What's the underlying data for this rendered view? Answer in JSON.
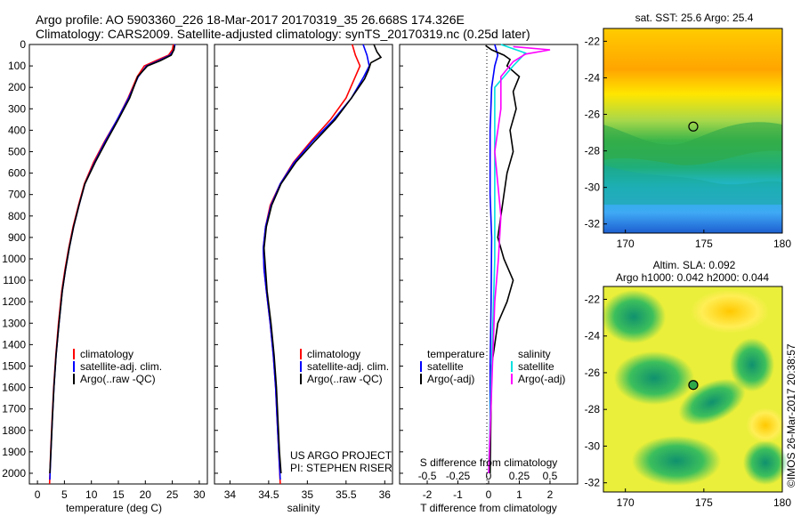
{
  "header": {
    "line1": "Argo profile: AO 5903360_226 18-Mar-2017 20170319_35 26.668S 174.326E",
    "line2": "Climatology: CARS2009. Satellite-adjusted climatology: synTS_20170319.nc (0.25d later)"
  },
  "colors": {
    "climatology": "#ff0000",
    "satellite": "#0000ff",
    "argo": "#000000",
    "sal_satellite": "#00e0e0",
    "sal_argo": "#ff00ff"
  },
  "depth_ticks": [
    "0",
    "100",
    "200",
    "300",
    "400",
    "500",
    "600",
    "700",
    "800",
    "900",
    "1000",
    "1100",
    "1200",
    "1300",
    "1400",
    "1500",
    "1600",
    "1700",
    "1800",
    "1900",
    "2000"
  ],
  "panels": {
    "temperature": {
      "xlabel": "temperature (deg C)",
      "xticks": [
        "0",
        "5",
        "10",
        "15",
        "20",
        "25",
        "30"
      ],
      "legend": [
        "climatology",
        "satellite-adj. clim.",
        "Argo(..raw -QC)"
      ]
    },
    "salinity": {
      "xlabel": "salinity",
      "xticks": [
        "34",
        "34.5",
        "35",
        "35.5",
        "36"
      ],
      "legend": [
        "climatology",
        "satellite-adj. clim.",
        "Argo(..raw -QC)"
      ],
      "credit1": "US ARGO PROJECT",
      "credit2": "PI: STEPHEN RISER"
    },
    "difference": {
      "xlabel": "T difference from climatology",
      "xticks": [
        "-2",
        "-1",
        "0",
        "1",
        "2"
      ],
      "top_label": "S difference from climatology",
      "top_ticks": [
        "-0.5",
        "-0.25",
        "0",
        "0.25",
        "0.5"
      ],
      "legend_t_title": "temperature",
      "legend_s_title": "salinity",
      "legend_t": [
        "satellite",
        "Argo(-adj)"
      ],
      "legend_s": [
        "satellite",
        "Argo(-adj)"
      ]
    }
  },
  "maps": {
    "sst": {
      "title": "sat. SST: 25.6  Argo: 25.4",
      "yticks": [
        "-22",
        "-24",
        "-26",
        "-28",
        "-30",
        "-32"
      ],
      "xticks": [
        "170",
        "175",
        "180"
      ]
    },
    "sla": {
      "title1": "Altim. SLA: 0.092",
      "title2": "Argo h1000: 0.042 h2000: 0.044",
      "yticks": [
        "-22",
        "-24",
        "-26",
        "-28",
        "-30",
        "-32"
      ],
      "xticks": [
        "170",
        "175",
        "180"
      ]
    },
    "profile_location": {
      "lon": 174.326,
      "lat": -26.668
    }
  },
  "footer_stamp": "©IMOS 26-Mar-2017 20:38:57",
  "chart_data": [
    {
      "type": "line",
      "name": "temperature",
      "xlabel": "temperature (deg C)",
      "ylabel": "",
      "xlim": [
        -1.5,
        31.5
      ],
      "ylim": [
        2050,
        0
      ],
      "series": [
        {
          "name": "climatology",
          "color": "#ff0000",
          "points": [
            [
              25.2,
              0
            ],
            [
              25.0,
              25
            ],
            [
              24.3,
              50
            ],
            [
              22.0,
              75
            ],
            [
              19.8,
              100
            ],
            [
              18.5,
              150
            ],
            [
              16.8,
              250
            ],
            [
              14.8,
              350
            ],
            [
              12.5,
              450
            ],
            [
              10.4,
              550
            ],
            [
              8.7,
              650
            ],
            [
              7.6,
              750
            ],
            [
              6.6,
              850
            ],
            [
              5.8,
              950
            ],
            [
              5.1,
              1050
            ],
            [
              4.5,
              1150
            ],
            [
              3.9,
              1300
            ],
            [
              3.4,
              1450
            ],
            [
              3.0,
              1600
            ],
            [
              2.7,
              1750
            ],
            [
              2.45,
              1900
            ],
            [
              2.25,
              2050
            ]
          ]
        },
        {
          "name": "satellite-adj. clim.",
          "color": "#0000ff",
          "points": [
            [
              25.5,
              0
            ],
            [
              25.3,
              25
            ],
            [
              24.6,
              50
            ],
            [
              22.5,
              75
            ],
            [
              20.2,
              100
            ],
            [
              18.7,
              150
            ],
            [
              16.9,
              250
            ],
            [
              14.8,
              350
            ],
            [
              12.6,
              450
            ],
            [
              10.6,
              550
            ],
            [
              8.8,
              650
            ],
            [
              7.7,
              750
            ],
            [
              6.7,
              850
            ],
            [
              5.9,
              950
            ],
            [
              5.2,
              1050
            ],
            [
              4.6,
              1150
            ],
            [
              4.0,
              1300
            ],
            [
              3.45,
              1450
            ],
            [
              3.05,
              1600
            ],
            [
              2.75,
              1750
            ],
            [
              2.5,
              1900
            ],
            [
              2.3,
              2030
            ]
          ]
        },
        {
          "name": "Argo(..raw -QC)",
          "color": "#000000",
          "points": [
            [
              25.4,
              5
            ],
            [
              25.3,
              25
            ],
            [
              24.8,
              50
            ],
            [
              22.8,
              75
            ],
            [
              20.4,
              100
            ],
            [
              18.6,
              150
            ],
            [
              17.1,
              250
            ],
            [
              15.0,
              350
            ],
            [
              12.8,
              450
            ],
            [
              10.7,
              550
            ],
            [
              8.8,
              650
            ],
            [
              7.7,
              750
            ],
            [
              6.7,
              850
            ],
            [
              5.9,
              950
            ],
            [
              5.2,
              1050
            ],
            [
              4.6,
              1150
            ],
            [
              4.0,
              1300
            ],
            [
              3.45,
              1450
            ],
            [
              3.05,
              1600
            ],
            [
              2.75,
              1750
            ],
            [
              2.5,
              1900
            ],
            [
              2.3,
              2000
            ]
          ]
        }
      ]
    },
    {
      "type": "line",
      "name": "salinity",
      "xlabel": "salinity",
      "ylabel": "",
      "xlim": [
        33.8,
        36.1
      ],
      "ylim": [
        2050,
        0
      ],
      "series": [
        {
          "name": "climatology",
          "color": "#ff0000",
          "points": [
            [
              35.58,
              0
            ],
            [
              35.62,
              50
            ],
            [
              35.68,
              100
            ],
            [
              35.62,
              150
            ],
            [
              35.5,
              250
            ],
            [
              35.3,
              350
            ],
            [
              35.05,
              450
            ],
            [
              34.82,
              550
            ],
            [
              34.65,
              650
            ],
            [
              34.52,
              750
            ],
            [
              34.46,
              850
            ],
            [
              34.43,
              950
            ],
            [
              34.44,
              1050
            ],
            [
              34.47,
              1150
            ],
            [
              34.52,
              1300
            ],
            [
              34.56,
              1450
            ],
            [
              34.59,
              1600
            ],
            [
              34.61,
              1750
            ],
            [
              34.63,
              1900
            ],
            [
              34.65,
              2050
            ]
          ]
        },
        {
          "name": "satellite-adj. clim.",
          "color": "#0000ff",
          "points": [
            [
              35.72,
              0
            ],
            [
              35.77,
              50
            ],
            [
              35.8,
              100
            ],
            [
              35.73,
              150
            ],
            [
              35.57,
              250
            ],
            [
              35.34,
              350
            ],
            [
              35.07,
              450
            ],
            [
              34.83,
              550
            ],
            [
              34.65,
              650
            ],
            [
              34.53,
              750
            ],
            [
              34.46,
              850
            ],
            [
              34.43,
              950
            ],
            [
              34.44,
              1050
            ],
            [
              34.47,
              1150
            ],
            [
              34.52,
              1300
            ],
            [
              34.56,
              1450
            ],
            [
              34.59,
              1600
            ],
            [
              34.61,
              1750
            ],
            [
              34.63,
              1900
            ],
            [
              34.65,
              2030
            ]
          ]
        },
        {
          "name": "Argo(..raw -QC)",
          "color": "#000000",
          "points": [
            [
              35.86,
              0
            ],
            [
              35.9,
              35
            ],
            [
              35.95,
              60
            ],
            [
              35.82,
              85
            ],
            [
              35.79,
              120
            ],
            [
              35.74,
              160
            ],
            [
              35.57,
              250
            ],
            [
              35.36,
              350
            ],
            [
              35.1,
              450
            ],
            [
              34.85,
              550
            ],
            [
              34.66,
              650
            ],
            [
              34.54,
              750
            ],
            [
              34.47,
              850
            ],
            [
              34.44,
              950
            ],
            [
              34.46,
              1050
            ],
            [
              34.48,
              1150
            ],
            [
              34.53,
              1300
            ],
            [
              34.57,
              1450
            ],
            [
              34.6,
              1600
            ],
            [
              34.62,
              1750
            ],
            [
              34.64,
              1900
            ],
            [
              34.66,
              2000
            ]
          ]
        }
      ]
    },
    {
      "type": "line",
      "name": "difference",
      "xlabel": "T difference from climatology",
      "ylabel": "",
      "xlim": [
        -2.9,
        2.9
      ],
      "ylim": [
        2050,
        0
      ],
      "series": [
        {
          "name": "temperature satellite",
          "color": "#0000ff",
          "axis": "T",
          "points": [
            [
              0.2,
              0
            ],
            [
              0.25,
              25
            ],
            [
              0.3,
              50
            ],
            [
              0.2,
              100
            ],
            [
              0.1,
              200
            ],
            [
              0.05,
              400
            ],
            [
              0.05,
              700
            ],
            [
              0.1,
              900
            ],
            [
              0.08,
              1200
            ],
            [
              0.05,
              1500
            ],
            [
              0.05,
              2000
            ]
          ]
        },
        {
          "name": "temperature Argo(-adj)",
          "color": "#000000",
          "axis": "T",
          "points": [
            [
              -0.1,
              5
            ],
            [
              0.1,
              25
            ],
            [
              0.5,
              50
            ],
            [
              0.7,
              70
            ],
            [
              0.6,
              100
            ],
            [
              1.0,
              150
            ],
            [
              0.8,
              220
            ],
            [
              0.9,
              300
            ],
            [
              0.7,
              400
            ],
            [
              0.8,
              500
            ],
            [
              0.6,
              600
            ],
            [
              0.5,
              700
            ],
            [
              0.4,
              800
            ],
            [
              0.3,
              900
            ],
            [
              0.5,
              1000
            ],
            [
              0.8,
              1100
            ],
            [
              0.6,
              1200
            ],
            [
              0.3,
              1300
            ],
            [
              0.1,
              1500
            ],
            [
              0.05,
              2000
            ]
          ]
        },
        {
          "name": "salinity satellite",
          "color": "#00e0e0",
          "axis": "S",
          "points": [
            [
              0.1,
              0
            ],
            [
              0.3,
              40
            ],
            [
              0.2,
              100
            ],
            [
              0.05,
              200
            ],
            [
              0.05,
              500
            ],
            [
              0.05,
              1000
            ],
            [
              0.0,
              2000
            ]
          ]
        },
        {
          "name": "salinity Argo(-adj)",
          "color": "#ff00ff",
          "axis": "S",
          "points": [
            [
              0.2,
              10
            ],
            [
              0.5,
              25
            ],
            [
              0.3,
              45
            ],
            [
              0.2,
              80
            ],
            [
              0.1,
              150
            ],
            [
              0.1,
              300
            ],
            [
              0.05,
              500
            ],
            [
              0.1,
              800
            ],
            [
              0.08,
              1000
            ],
            [
              0.05,
              1200
            ],
            [
              0.0,
              2000
            ]
          ]
        }
      ]
    }
  ]
}
